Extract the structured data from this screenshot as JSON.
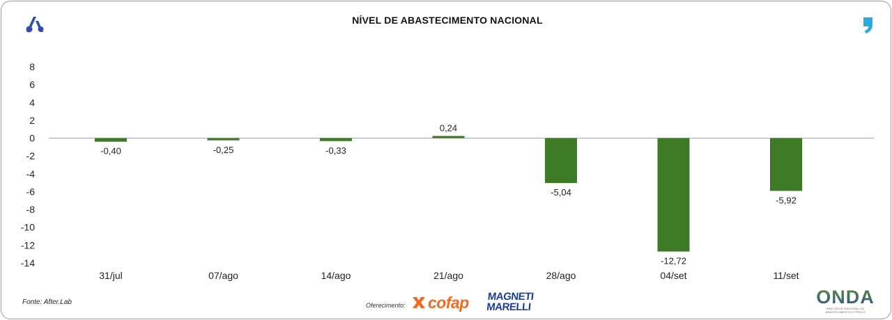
{
  "header": {
    "title": "NÍVEL DE ABASTECIMENTO NACIONAL"
  },
  "footer": {
    "source": "Fonte: After.Lab",
    "sponsor_label": "Oferecimento:",
    "sponsor_cofap": "cofap",
    "sponsor_magneti_line1": "MAGNETI",
    "sponsor_magneti_line2": "MARELLI",
    "brand_onda": "ONDA",
    "brand_onda_tagline": "INDICADOR NACIONAL DE ABASTECIMENTO E PREÇO"
  },
  "chart_data": {
    "type": "bar",
    "title": "NÍVEL DE ABASTECIMENTO NACIONAL",
    "xlabel": "",
    "ylabel": "",
    "categories": [
      "31/jul",
      "07/ago",
      "14/ago",
      "21/ago",
      "28/ago",
      "04/set",
      "11/set"
    ],
    "values": [
      -0.4,
      -0.25,
      -0.33,
      0.24,
      -5.04,
      -12.72,
      -5.92
    ],
    "value_labels": [
      "-0,40",
      "-0,25",
      "-0,33",
      "0,24",
      "-5,04",
      "-12,72",
      "-5,92"
    ],
    "y_ticks": [
      8,
      6,
      4,
      2,
      0,
      -2,
      -4,
      -6,
      -8,
      -10,
      -12,
      -14
    ],
    "ylim": [
      -14,
      8
    ],
    "grid": false,
    "bar_color": "#3d7a25",
    "zero_line_color": "#b5b5b5"
  },
  "colors": {
    "title": "#111111",
    "logo_blue": "#2f4fa5",
    "comma_blue": "#29a9e1",
    "cofap_orange": "#f26a21",
    "magneti_blue": "#1d3f93"
  }
}
